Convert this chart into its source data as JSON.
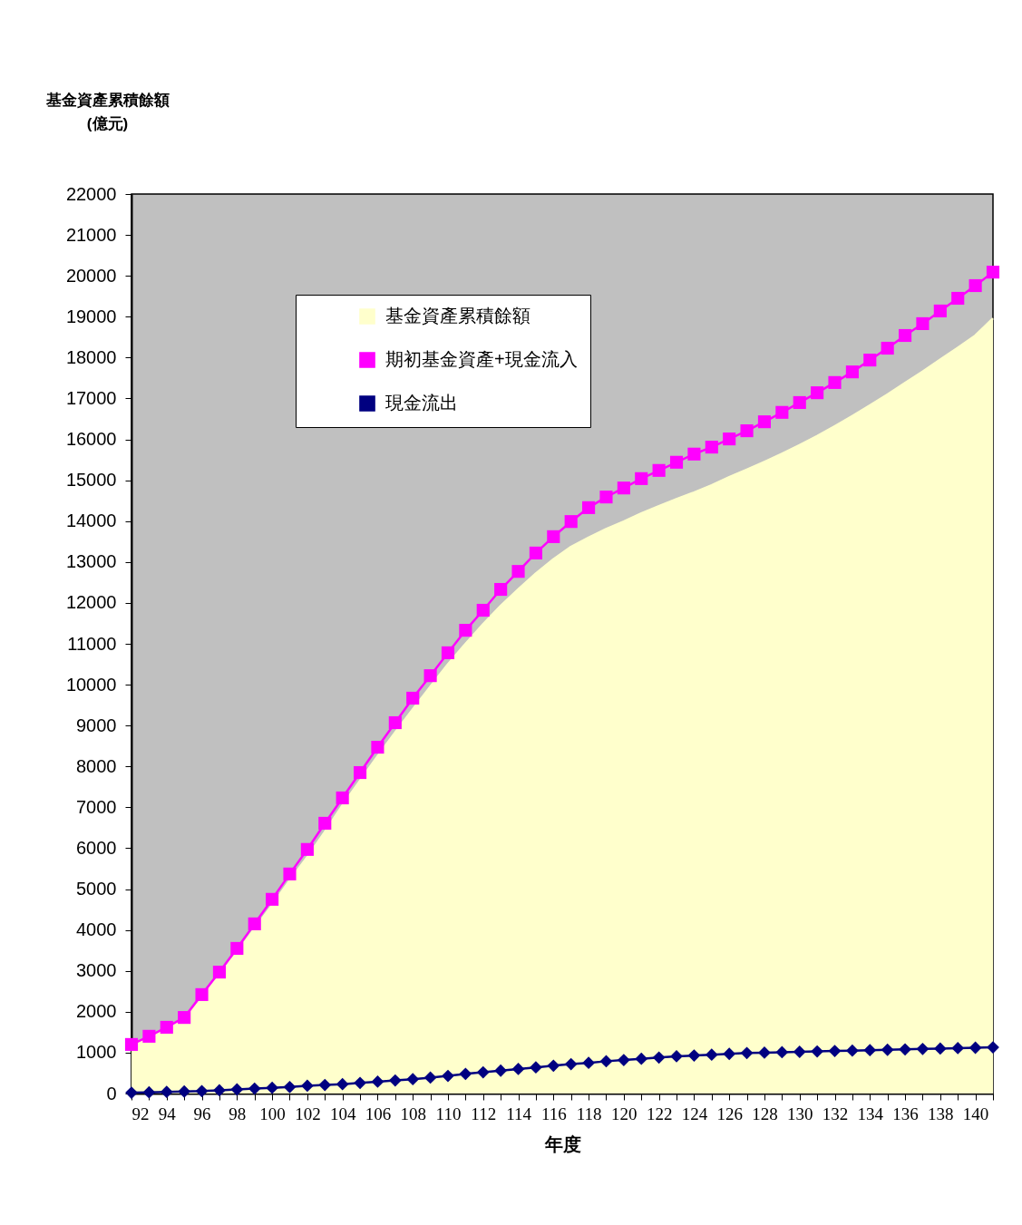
{
  "chart_data": {
    "type": "line",
    "xlabel": "年度",
    "ylabel": "基金資產累積餘額\n(億元)",
    "x": [
      92,
      93,
      94,
      95,
      96,
      97,
      98,
      99,
      100,
      101,
      102,
      103,
      104,
      105,
      106,
      107,
      108,
      109,
      110,
      111,
      112,
      113,
      114,
      115,
      116,
      117,
      118,
      119,
      120,
      121,
      122,
      123,
      124,
      125,
      126,
      127,
      128,
      129,
      130,
      131,
      132,
      133,
      134,
      135,
      136,
      137,
      138,
      139,
      140,
      141
    ],
    "series": [
      {
        "name": "基金資產累積餘額",
        "type": "area",
        "color": "#ffffcc",
        "marker": "none",
        "values": [
          1180,
          1370,
          1580,
          1810,
          2360,
          2890,
          3450,
          4030,
          4610,
          5210,
          5780,
          6400,
          7050,
          7650,
          8250,
          8830,
          9400,
          9950,
          10500,
          11000,
          11480,
          11930,
          12330,
          12720,
          13070,
          13370,
          13600,
          13810,
          13990,
          14190,
          14370,
          14540,
          14700,
          14880,
          15080,
          15260,
          15450,
          15650,
          15860,
          16080,
          16320,
          16570,
          16830,
          17100,
          17380,
          17660,
          17950,
          18240,
          18540,
          18960
        ]
      },
      {
        "name": "期初基金資產+現金流入",
        "color": "#ff00ff",
        "marker": "square",
        "values": [
          1200,
          1400,
          1620,
          1860,
          2420,
          2970,
          3550,
          4150,
          4750,
          5370,
          5970,
          6610,
          7230,
          7850,
          8470,
          9070,
          9670,
          10220,
          10780,
          11330,
          11820,
          12330,
          12770,
          13220,
          13620,
          13990,
          14330,
          14590,
          14810,
          15040,
          15240,
          15440,
          15640,
          15810,
          16010,
          16210,
          16430,
          16660,
          16900,
          17140,
          17390,
          17650,
          17940,
          18230,
          18540,
          18830,
          19140,
          19450,
          19760,
          20090
        ]
      },
      {
        "name": "現金流出",
        "color": "#000080",
        "marker": "diamond",
        "values": [
          20,
          30,
          40,
          50,
          60,
          80,
          100,
          120,
          140,
          160,
          190,
          210,
          230,
          260,
          290,
          320,
          350,
          390,
          430,
          480,
          520,
          560,
          600,
          640,
          680,
          720,
          750,
          790,
          820,
          850,
          880,
          910,
          930,
          950,
          970,
          990,
          1000,
          1010,
          1020,
          1030,
          1040,
          1050,
          1060,
          1070,
          1080,
          1090,
          1100,
          1110,
          1120,
          1130
        ]
      }
    ],
    "xlim": [
      92,
      141
    ],
    "xticks": [
      92,
      {
        "value": 93,
        "label": null
      },
      94,
      {
        "value": 95,
        "label": null
      },
      96,
      {
        "value": 97,
        "label": null
      },
      98,
      {
        "value": 99,
        "label": null
      },
      100,
      {
        "value": 101,
        "label": null
      },
      102,
      {
        "value": 103,
        "label": null
      },
      104,
      {
        "value": 105,
        "label": null
      },
      106,
      {
        "value": 107,
        "label": null
      },
      108,
      {
        "value": 109,
        "label": null
      },
      110,
      {
        "value": 111,
        "label": null
      },
      112,
      {
        "value": 113,
        "label": null
      },
      114,
      {
        "value": 115,
        "label": null
      },
      116,
      {
        "value": 117,
        "label": null
      },
      118,
      {
        "value": 119,
        "label": null
      },
      120,
      {
        "value": 121,
        "label": null
      },
      122,
      {
        "value": 123,
        "label": null
      },
      124,
      {
        "value": 125,
        "label": null
      },
      126,
      {
        "value": 127,
        "label": null
      },
      128,
      {
        "value": 129,
        "label": null
      },
      130,
      {
        "value": 131,
        "label": null
      },
      132,
      {
        "value": 133,
        "label": null
      },
      134,
      {
        "value": 135,
        "label": null
      },
      136,
      {
        "value": 137,
        "label": null
      },
      138,
      {
        "value": 139,
        "label": null
      },
      140,
      {
        "value": 141,
        "label": null
      }
    ],
    "ylim": [
      0,
      22000
    ],
    "yticks": [
      0,
      1000,
      2000,
      3000,
      4000,
      5000,
      6000,
      7000,
      8000,
      9000,
      10000,
      11000,
      12000,
      13000,
      14000,
      15000,
      16000,
      17000,
      18000,
      19000,
      20000,
      21000,
      22000
    ],
    "grid": false,
    "legend": "top left"
  }
}
